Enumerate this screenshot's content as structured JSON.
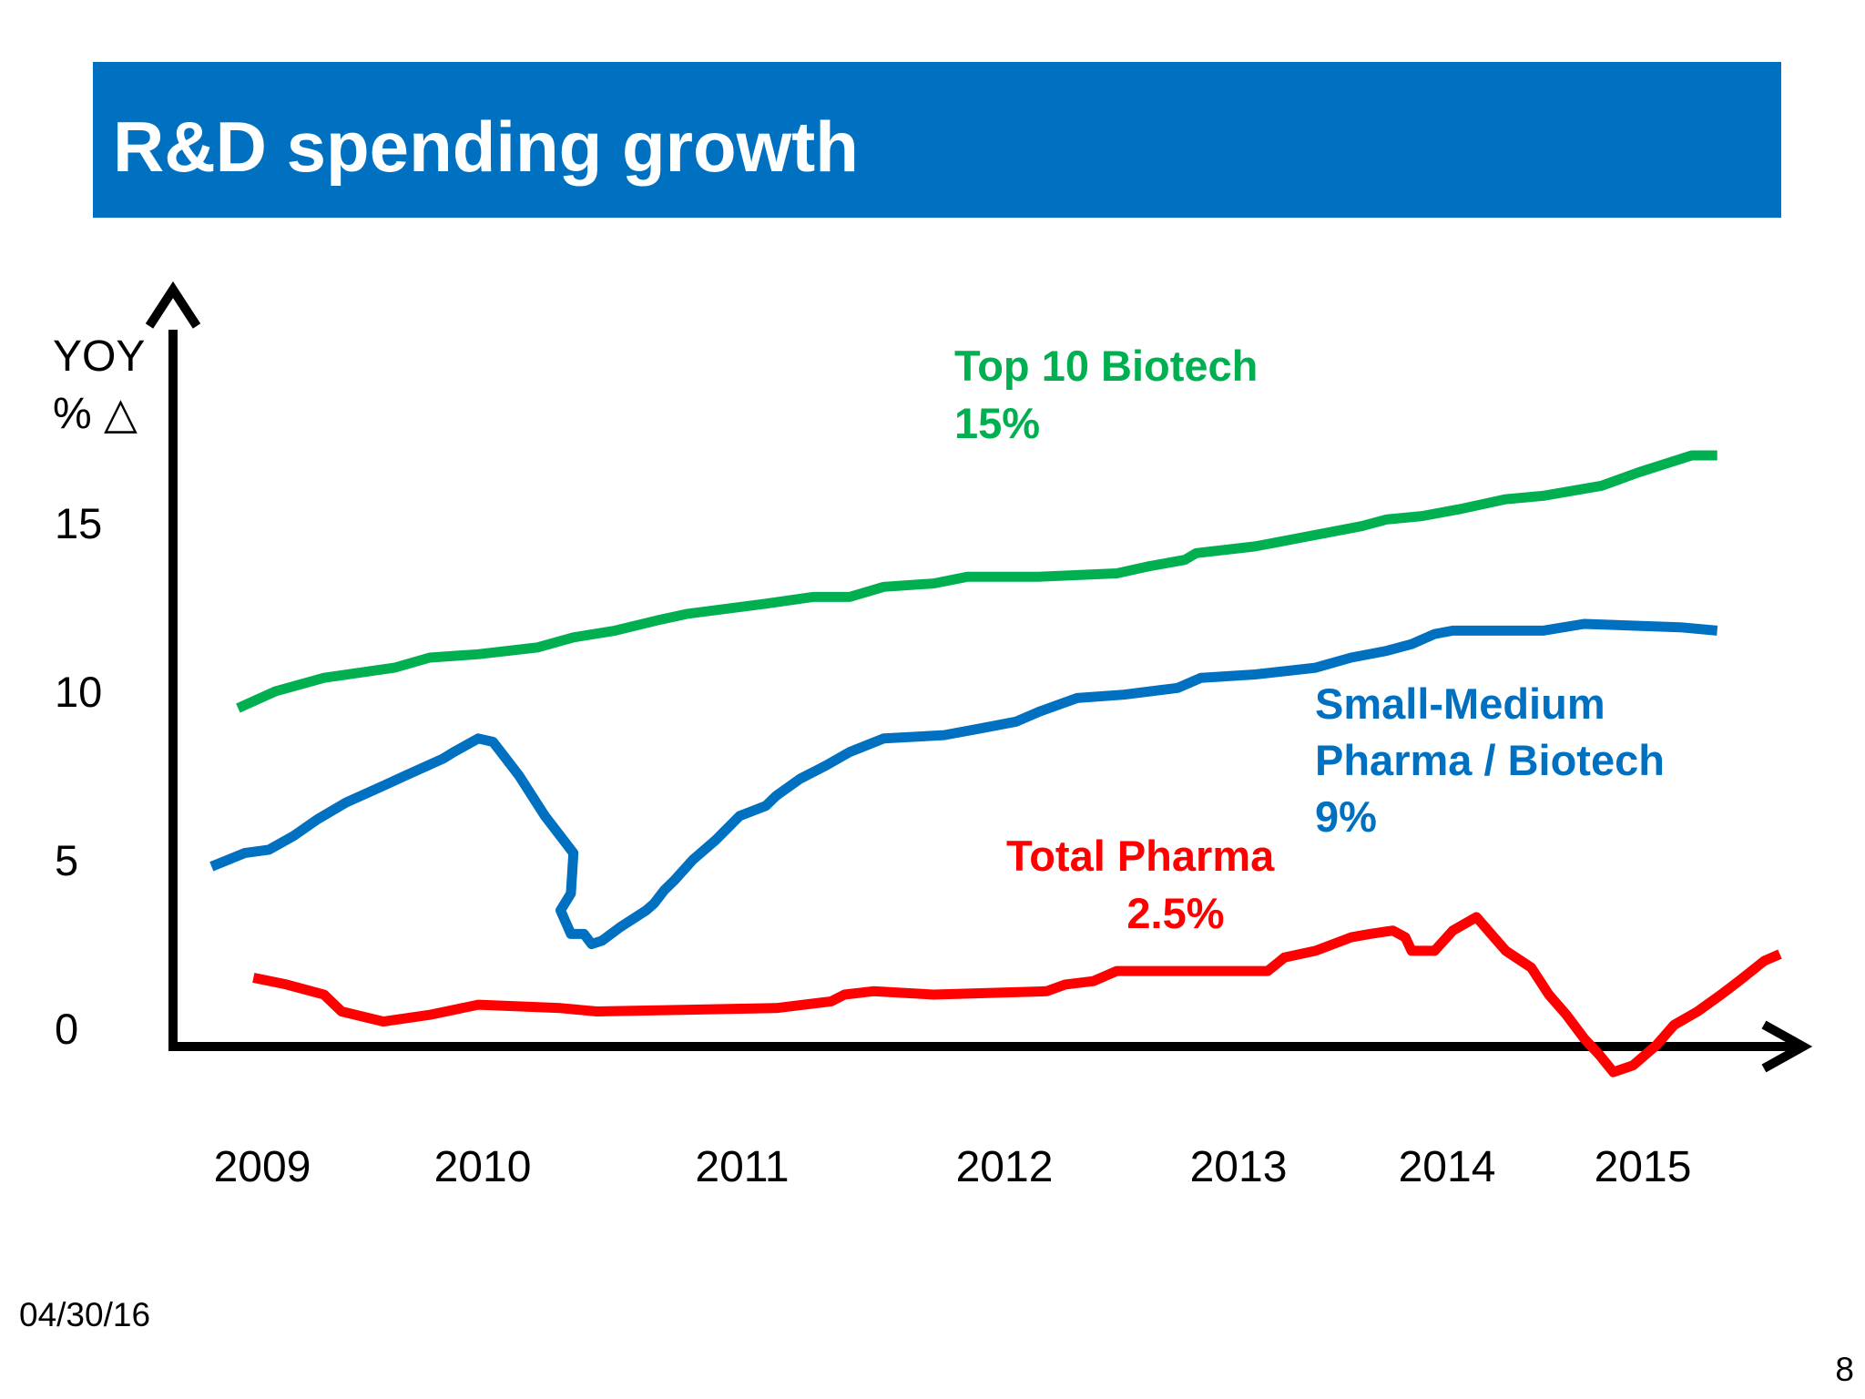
{
  "slide": {
    "title": "R&D spending growth",
    "date": "04/30/16",
    "page_number": "8",
    "banner_color": "#0070c0"
  },
  "chart_data": {
    "type": "line",
    "title": "",
    "ylabel_line1": "YOY",
    "ylabel_line2": "% △",
    "xlabel": "",
    "y_ticks": [
      "0",
      "5",
      "10",
      "15"
    ],
    "y_tick_values": [
      0,
      5,
      10,
      15
    ],
    "x_ticks": [
      "2009",
      "2010",
      "2011",
      "2012",
      "2013",
      "2014",
      "2015"
    ],
    "grid": false,
    "series": [
      {
        "name": "Top 10 Biotech",
        "label_value": "15%",
        "color": "#00b050",
        "points": [
          [
            2008.89,
            9.5
          ],
          [
            2009.06,
            10.0
          ],
          [
            2009.28,
            10.4
          ],
          [
            2009.6,
            10.7
          ],
          [
            2009.76,
            11.0
          ],
          [
            2009.98,
            11.1
          ],
          [
            2010.21,
            11.3
          ],
          [
            2010.35,
            11.6
          ],
          [
            2010.51,
            11.8
          ],
          [
            2010.67,
            12.1
          ],
          [
            2010.79,
            12.3
          ],
          [
            2011.09,
            12.6
          ],
          [
            2011.27,
            12.8
          ],
          [
            2011.41,
            12.8
          ],
          [
            2011.54,
            13.1
          ],
          [
            2011.73,
            13.2
          ],
          [
            2011.86,
            13.4
          ],
          [
            2012.15,
            13.4
          ],
          [
            2012.48,
            13.5
          ],
          [
            2012.61,
            13.7
          ],
          [
            2012.77,
            13.9
          ],
          [
            2012.82,
            14.1
          ],
          [
            2013.08,
            14.3
          ],
          [
            2013.25,
            14.5
          ],
          [
            2013.59,
            14.9
          ],
          [
            2013.71,
            15.1
          ],
          [
            2013.88,
            15.2
          ],
          [
            2014.06,
            15.4
          ],
          [
            2014.3,
            15.7
          ],
          [
            2014.49,
            15.8
          ],
          [
            2014.79,
            16.1
          ],
          [
            2014.98,
            16.5
          ],
          [
            2015.25,
            17.0
          ],
          [
            2015.38,
            17.0
          ]
        ]
      },
      {
        "name": "Small-Medium Pharma / Biotech",
        "label_line1": "Small-Medium",
        "label_line2": "Pharma / Biotech",
        "label_value": "9%",
        "color": "#0070c0",
        "points": [
          [
            2008.77,
            4.8
          ],
          [
            2008.92,
            5.2
          ],
          [
            2009.03,
            5.3
          ],
          [
            2009.14,
            5.7
          ],
          [
            2009.25,
            6.2
          ],
          [
            2009.38,
            6.7
          ],
          [
            2009.55,
            7.2
          ],
          [
            2009.65,
            7.5
          ],
          [
            2009.82,
            8.0
          ],
          [
            2009.87,
            8.2
          ],
          [
            2009.98,
            8.6
          ],
          [
            2010.04,
            8.5
          ],
          [
            2010.14,
            7.5
          ],
          [
            2010.24,
            6.3
          ],
          [
            2010.3,
            5.7
          ],
          [
            2010.35,
            5.2
          ],
          [
            2010.34,
            4.0
          ],
          [
            2010.3,
            3.5
          ],
          [
            2010.34,
            2.8
          ],
          [
            2010.39,
            2.8
          ],
          [
            2010.42,
            2.5
          ],
          [
            2010.46,
            2.6
          ],
          [
            2010.53,
            3.0
          ],
          [
            2010.63,
            3.5
          ],
          [
            2010.66,
            3.7
          ],
          [
            2010.7,
            4.1
          ],
          [
            2010.74,
            4.4
          ],
          [
            2010.81,
            5.0
          ],
          [
            2010.9,
            5.6
          ],
          [
            2010.99,
            6.3
          ],
          [
            2011.09,
            6.6
          ],
          [
            2011.13,
            6.9
          ],
          [
            2011.22,
            7.4
          ],
          [
            2011.32,
            7.8
          ],
          [
            2011.41,
            8.2
          ],
          [
            2011.54,
            8.6
          ],
          [
            2011.77,
            8.7
          ],
          [
            2011.91,
            8.9
          ],
          [
            2012.05,
            9.1
          ],
          [
            2012.15,
            9.4
          ],
          [
            2012.31,
            9.8
          ],
          [
            2012.51,
            9.9
          ],
          [
            2012.74,
            10.1
          ],
          [
            2012.84,
            10.4
          ],
          [
            2013.08,
            10.5
          ],
          [
            2013.37,
            10.7
          ],
          [
            2013.54,
            11.0
          ],
          [
            2013.71,
            11.2
          ],
          [
            2013.83,
            11.4
          ],
          [
            2013.94,
            11.7
          ],
          [
            2014.03,
            11.8
          ],
          [
            2014.24,
            11.8
          ],
          [
            2014.49,
            11.8
          ],
          [
            2014.7,
            12.0
          ],
          [
            2015.19,
            11.9
          ],
          [
            2015.38,
            11.8
          ]
        ]
      },
      {
        "name": "Total Pharma",
        "label_value": "2.5%",
        "color": "#ff0000",
        "points": [
          [
            2008.96,
            1.5
          ],
          [
            2009.11,
            1.3
          ],
          [
            2009.28,
            1.0
          ],
          [
            2009.36,
            0.5
          ],
          [
            2009.55,
            0.2
          ],
          [
            2009.76,
            0.4
          ],
          [
            2009.98,
            0.7
          ],
          [
            2010.3,
            0.6
          ],
          [
            2010.44,
            0.5
          ],
          [
            2011.13,
            0.6
          ],
          [
            2011.34,
            0.8
          ],
          [
            2011.39,
            1.0
          ],
          [
            2011.5,
            1.1
          ],
          [
            2011.73,
            1.0
          ],
          [
            2012.18,
            1.1
          ],
          [
            2012.26,
            1.3
          ],
          [
            2012.38,
            1.4
          ],
          [
            2012.48,
            1.7
          ],
          [
            2013.14,
            1.7
          ],
          [
            2013.22,
            2.1
          ],
          [
            2013.37,
            2.3
          ],
          [
            2013.54,
            2.7
          ],
          [
            2013.63,
            2.8
          ],
          [
            2013.74,
            2.9
          ],
          [
            2013.8,
            2.7
          ],
          [
            2013.83,
            2.3
          ],
          [
            2013.94,
            2.3
          ],
          [
            2014.03,
            2.9
          ],
          [
            2014.15,
            3.3
          ],
          [
            2014.21,
            2.9
          ],
          [
            2014.3,
            2.3
          ],
          [
            2014.43,
            1.8
          ],
          [
            2014.52,
            1.0
          ],
          [
            2014.61,
            0.4
          ],
          [
            2014.7,
            -0.3
          ],
          [
            2014.78,
            -0.8
          ],
          [
            2014.85,
            -1.3
          ],
          [
            2014.95,
            -1.1
          ],
          [
            2015.07,
            -0.5
          ],
          [
            2015.16,
            0.1
          ],
          [
            2015.28,
            0.5
          ],
          [
            2015.4,
            1.0
          ],
          [
            2015.49,
            1.4
          ],
          [
            2015.62,
            2.0
          ],
          [
            2015.7,
            2.2
          ]
        ]
      }
    ]
  }
}
